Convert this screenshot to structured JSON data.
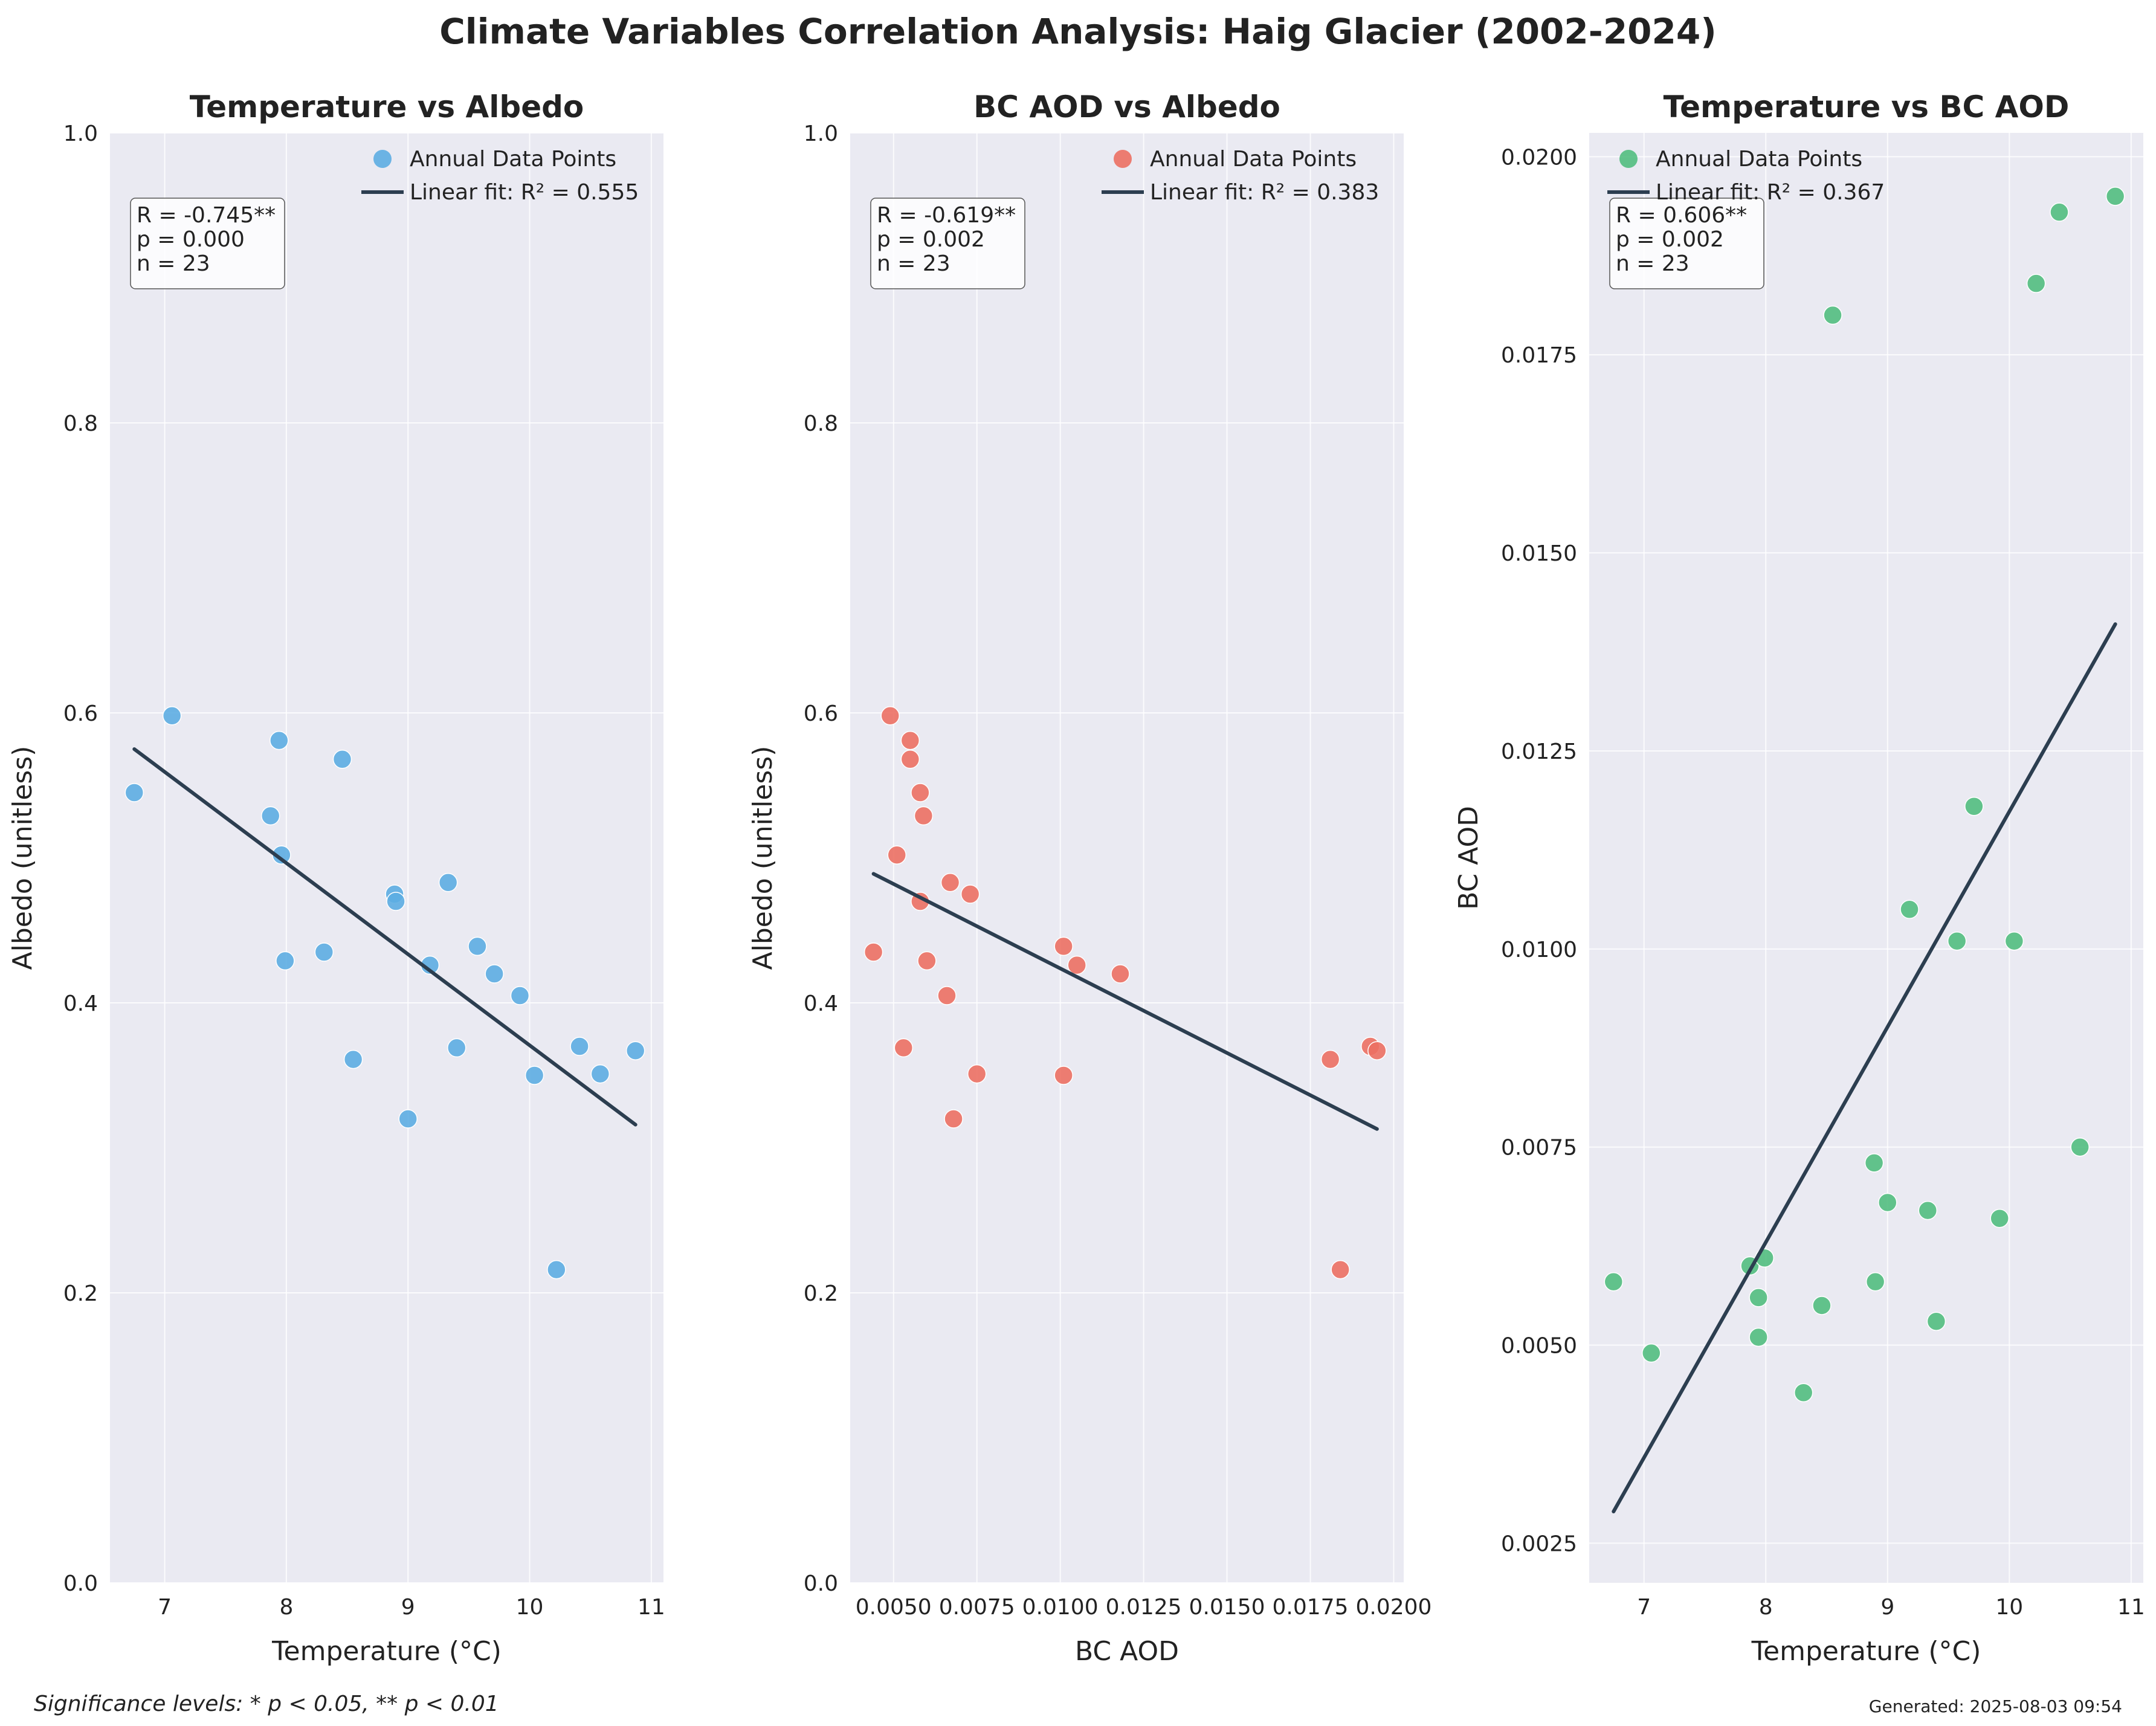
{
  "figure": {
    "suptitle": "Climate Variables Correlation Analysis: Haig Glacier (2002-2024)",
    "footnote": "Significance levels: * p < 0.05, ** p < 0.01",
    "generated": "Generated: 2025-08-03 09:54"
  },
  "chart_data": [
    {
      "type": "scatter",
      "title": "Temperature vs Albedo",
      "xlabel": "Temperature (°C)",
      "ylabel": "Albedo (unitless)",
      "xlim": [
        6.55,
        11.1
      ],
      "ylim": [
        0.0,
        1.0
      ],
      "xticks": [
        7,
        8,
        9,
        10,
        11
      ],
      "xtick_labels": [
        "7",
        "8",
        "9",
        "10",
        "11"
      ],
      "yticks": [
        0.0,
        0.2,
        0.4,
        0.6,
        0.8,
        1.0
      ],
      "ytick_labels": [
        "0.0",
        "0.2",
        "0.4",
        "0.6",
        "0.8",
        "1.0"
      ],
      "grid": true,
      "legend_position": "upper-right",
      "point_color": "#5DADE2",
      "series": [
        {
          "name": "Annual Data Points",
          "kind": "scatter",
          "points": [
            [
              6.75,
              0.545
            ],
            [
              7.06,
              0.598
            ],
            [
              7.87,
              0.529
            ],
            [
              7.94,
              0.581
            ],
            [
              7.96,
              0.502
            ],
            [
              7.99,
              0.429
            ],
            [
              8.31,
              0.435
            ],
            [
              8.46,
              0.568
            ],
            [
              8.55,
              0.361
            ],
            [
              8.89,
              0.475
            ],
            [
              8.9,
              0.47
            ],
            [
              9.0,
              0.32
            ],
            [
              9.18,
              0.426
            ],
            [
              9.33,
              0.483
            ],
            [
              9.4,
              0.369
            ],
            [
              9.57,
              0.439
            ],
            [
              9.71,
              0.42
            ],
            [
              9.92,
              0.405
            ],
            [
              10.04,
              0.35
            ],
            [
              10.22,
              0.216
            ],
            [
              10.41,
              0.37
            ],
            [
              10.58,
              0.351
            ],
            [
              10.87,
              0.367
            ]
          ]
        },
        {
          "name": "Linear fit: R² = 0.555",
          "kind": "line",
          "points": [
            [
              6.75,
              0.575
            ],
            [
              10.87,
              0.316
            ]
          ]
        }
      ],
      "stats": [
        "R = -0.745**",
        "p = 0.000",
        "n = 23"
      ]
    },
    {
      "type": "scatter",
      "title": "BC AOD vs Albedo",
      "xlabel": "BC AOD",
      "ylabel": "Albedo (unitless)",
      "xlim": [
        0.0037,
        0.0203
      ],
      "ylim": [
        0.0,
        1.0
      ],
      "xticks": [
        0.005,
        0.0075,
        0.01,
        0.0125,
        0.015,
        0.0175,
        0.02
      ],
      "xtick_labels": [
        "0.0050",
        "0.0075",
        "0.0100",
        "0.0125",
        "0.0150",
        "0.0175",
        "0.0200"
      ],
      "yticks": [
        0.0,
        0.2,
        0.4,
        0.6,
        0.8,
        1.0
      ],
      "ytick_labels": [
        "0.0",
        "0.2",
        "0.4",
        "0.6",
        "0.8",
        "1.0"
      ],
      "grid": true,
      "legend_position": "upper-right",
      "point_color": "#EC7063",
      "series": [
        {
          "name": "Annual Data Points",
          "kind": "scatter",
          "points": [
            [
              0.0044,
              0.435
            ],
            [
              0.0049,
              0.598
            ],
            [
              0.0051,
              0.502
            ],
            [
              0.0053,
              0.369
            ],
            [
              0.0055,
              0.581
            ],
            [
              0.0055,
              0.568
            ],
            [
              0.0058,
              0.545
            ],
            [
              0.0058,
              0.47
            ],
            [
              0.0059,
              0.529
            ],
            [
              0.006,
              0.429
            ],
            [
              0.0066,
              0.405
            ],
            [
              0.0067,
              0.483
            ],
            [
              0.0068,
              0.32
            ],
            [
              0.0073,
              0.475
            ],
            [
              0.0075,
              0.351
            ],
            [
              0.0101,
              0.439
            ],
            [
              0.0101,
              0.35
            ],
            [
              0.0105,
              0.426
            ],
            [
              0.0118,
              0.42
            ],
            [
              0.0181,
              0.361
            ],
            [
              0.0184,
              0.216
            ],
            [
              0.0193,
              0.37
            ],
            [
              0.0195,
              0.367
            ]
          ]
        },
        {
          "name": "Linear fit: R² = 0.383",
          "kind": "line",
          "points": [
            [
              0.0044,
              0.489
            ],
            [
              0.0195,
              0.313
            ]
          ]
        }
      ],
      "stats": [
        "R = -0.619**",
        "p = 0.002",
        "n = 23"
      ]
    },
    {
      "type": "scatter",
      "title": "Temperature vs BC AOD",
      "xlabel": "Temperature (°C)",
      "ylabel": "BC AOD",
      "xlim": [
        6.55,
        11.1
      ],
      "ylim": [
        0.002,
        0.0203
      ],
      "xticks": [
        7,
        8,
        9,
        10,
        11
      ],
      "xtick_labels": [
        "7",
        "8",
        "9",
        "10",
        "11"
      ],
      "yticks": [
        0.0025,
        0.005,
        0.0075,
        0.01,
        0.0125,
        0.015,
        0.0175,
        0.02
      ],
      "ytick_labels": [
        "0.0025",
        "0.0050",
        "0.0075",
        "0.0100",
        "0.0125",
        "0.0150",
        "0.0175",
        "0.0200"
      ],
      "grid": true,
      "legend_position": "upper-left",
      "point_color": "#52BE80",
      "series": [
        {
          "name": "Annual Data Points",
          "kind": "scatter",
          "points": [
            [
              6.75,
              0.0058
            ],
            [
              7.06,
              0.0049
            ],
            [
              7.87,
              0.006
            ],
            [
              7.94,
              0.0051
            ],
            [
              7.94,
              0.0056
            ],
            [
              7.99,
              0.0061
            ],
            [
              8.31,
              0.0044
            ],
            [
              8.46,
              0.0055
            ],
            [
              8.55,
              0.018
            ],
            [
              8.89,
              0.0073
            ],
            [
              8.9,
              0.0058
            ],
            [
              9.0,
              0.0068
            ],
            [
              9.18,
              0.0105
            ],
            [
              9.33,
              0.0067
            ],
            [
              9.4,
              0.0053
            ],
            [
              9.57,
              0.0101
            ],
            [
              9.71,
              0.0118
            ],
            [
              9.92,
              0.0066
            ],
            [
              10.04,
              0.0101
            ],
            [
              10.22,
              0.0184
            ],
            [
              10.41,
              0.0193
            ],
            [
              10.58,
              0.0075
            ],
            [
              10.87,
              0.0195
            ]
          ]
        },
        {
          "name": "Linear fit: R² = 0.367",
          "kind": "line",
          "points": [
            [
              6.75,
              0.0029
            ],
            [
              10.87,
              0.0141
            ]
          ]
        }
      ],
      "stats": [
        "R = 0.606**",
        "p = 0.002",
        "n = 23"
      ]
    }
  ]
}
